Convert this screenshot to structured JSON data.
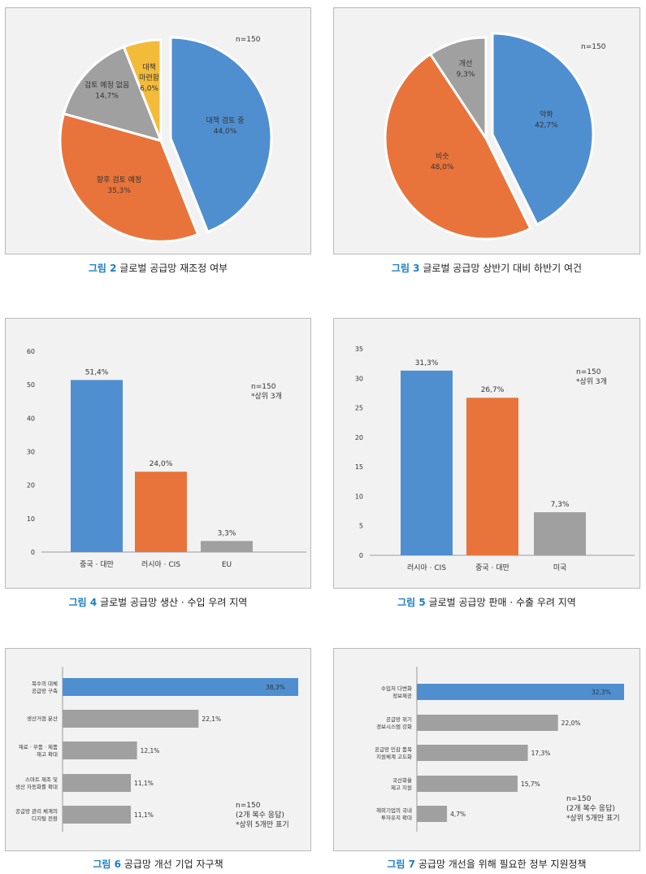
{
  "colors": {
    "blue": "#4f8fd0",
    "orange": "#e8743b",
    "gray": "#a0a0a0",
    "yellow": "#f3bb3a",
    "caption_accent": "#1c7ec4"
  },
  "charts": [
    {
      "caption_num": "그림 2",
      "caption_text": "글로벌 공급망 재조정 여부",
      "notes": [
        "n=150"
      ],
      "chart_data": {
        "type": "pie",
        "slices": [
          {
            "label": "대책 검토 중",
            "value": 44.0,
            "pct": "44,0%",
            "color": "#4f8fd0"
          },
          {
            "label": "향후 검토 예정",
            "value": 35.3,
            "pct": "35,3%",
            "color": "#e8743b"
          },
          {
            "label": "검토 예정 없음",
            "value": 14.7,
            "pct": "14,7%",
            "color": "#a0a0a0"
          },
          {
            "label": "대책\n마련함",
            "value": 6.0,
            "pct": "6,0%",
            "color": "#f3bb3a"
          }
        ],
        "exploded": 0
      }
    },
    {
      "caption_num": "그림 3",
      "caption_text": "글로벌 공급망 상반기 대비 하반기 여건",
      "notes": [
        "n=150"
      ],
      "chart_data": {
        "type": "pie",
        "slices": [
          {
            "label": "악화",
            "value": 42.7,
            "pct": "42,7%",
            "color": "#4f8fd0"
          },
          {
            "label": "비슷",
            "value": 48.0,
            "pct": "48,0%",
            "color": "#e8743b"
          },
          {
            "label": "개선",
            "value": 9.3,
            "pct": "9,3%",
            "color": "#a0a0a0"
          }
        ],
        "exploded": 0
      }
    },
    {
      "caption_num": "그림 4",
      "caption_text": "글로벌 공급망 생산 · 수입 우려 지역",
      "notes": [
        "n=150",
        "*상위 3개"
      ],
      "chart_data": {
        "type": "bar",
        "categories": [
          "중국 · 대만",
          "러시아 · CIS",
          "EU"
        ],
        "values": [
          51.4,
          24.0,
          3.3
        ],
        "value_labels": [
          "51,4%",
          "24,0%",
          "3,3%"
        ],
        "colors": [
          "#4f8fd0",
          "#e8743b",
          "#a0a0a0"
        ],
        "ylim": [
          0,
          60
        ],
        "yticks": [
          "0",
          "10",
          "20",
          "30",
          "40",
          "50",
          "60"
        ]
      }
    },
    {
      "caption_num": "그림 5",
      "caption_text": "글로벌 공급망 판매 · 수출 우려 지역",
      "notes": [
        "n=150",
        "*상위 3개"
      ],
      "chart_data": {
        "type": "bar",
        "categories": [
          "러시아 · CIS",
          "중국 · 대만",
          "미국"
        ],
        "values": [
          31.3,
          26.7,
          7.3
        ],
        "value_labels": [
          "31,3%",
          "26,7%",
          "7,3%"
        ],
        "colors": [
          "#4f8fd0",
          "#e8743b",
          "#a0a0a0"
        ],
        "ylim": [
          0,
          35
        ],
        "yticks": [
          "0",
          "5",
          "10",
          "15",
          "20",
          "25",
          "30",
          "35"
        ]
      }
    },
    {
      "caption_num": "그림 6",
      "caption_text": "공급망 개선 기업 자구책",
      "notes": [
        "n=150",
        "(2개 복수 응답)",
        "*상위 5개만 표기"
      ],
      "chart_data": {
        "type": "hbar",
        "categories": [
          "복수의 대체\n공급망 구축",
          "생산거점 분산",
          "재료 · 부품 · 제품\n재고 확대",
          "스마트 제조 및\n생산 자동화를 확대",
          "공급망 관리 체계의\n디지털 전환"
        ],
        "values": [
          38.3,
          22.1,
          12.1,
          11.1,
          11.1
        ],
        "value_labels": [
          "38,3%",
          "22,1%",
          "12,1%",
          "11,1%",
          "11,1%"
        ],
        "colors": [
          "#4f8fd0",
          "#a0a0a0",
          "#a0a0a0",
          "#a0a0a0",
          "#a0a0a0"
        ],
        "xmax": 38.3
      }
    },
    {
      "caption_num": "그림 7",
      "caption_text": "공급망 개선을 위해 필요한 정부 지원정책",
      "notes": [
        "n=150",
        "(2개 복수 응답)",
        "*상위 5개만 표기"
      ],
      "chart_data": {
        "type": "hbar",
        "categories": [
          "수입처 다변화\n정보제공",
          "공급망 위기\n경보시스템 강화",
          "공급망 민감 품목\n지원체계 고도화",
          "국산화율\n제고 지원",
          "해외기업의 국내\n투자유치 확대"
        ],
        "values": [
          32.3,
          22.0,
          17.3,
          15.7,
          4.7
        ],
        "value_labels": [
          "32,3%",
          "22,0%",
          "17,3%",
          "15,7%",
          "4,7%"
        ],
        "colors": [
          "#4f8fd0",
          "#a0a0a0",
          "#a0a0a0",
          "#a0a0a0",
          "#a0a0a0"
        ],
        "xmax": 32.3
      }
    }
  ]
}
